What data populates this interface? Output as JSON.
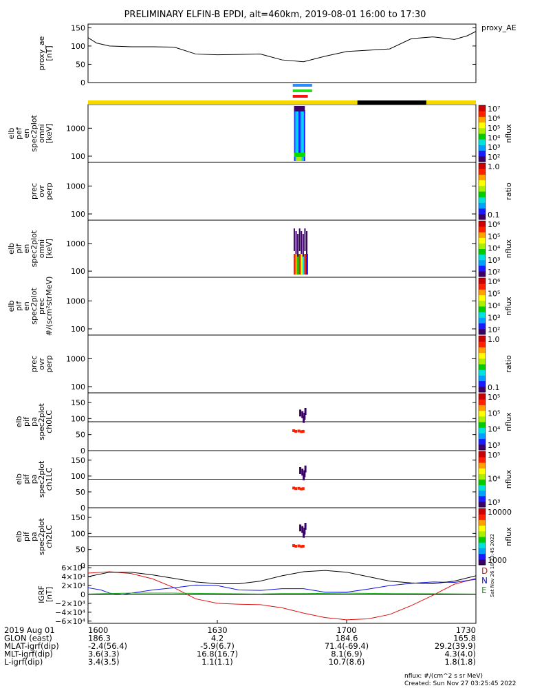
{
  "title": "PRELIMINARY ELFIN-B EPDI, alt=460km, 2019-08-01 16:00 to 17:30",
  "colors": {
    "status_yellow": "#f5d800",
    "status_black": "#000000",
    "bar_blue": "#2a8cff",
    "bar_green": "#22dd22",
    "bar_red": "#ff1010",
    "igrf_d": "#dd1010",
    "igrf_n": "#1010dd",
    "igrf_e": "#10aa10"
  },
  "chart_data": [
    {
      "type": "line",
      "panel": "proxy_ae",
      "ylabel_lines": [
        "proxy_ae",
        "[nT]"
      ],
      "legend": "proxy_AE",
      "ylim": [
        0,
        160
      ],
      "yticks": [
        "0",
        "50",
        "100",
        "150"
      ],
      "x": [
        0,
        2,
        5,
        10,
        15,
        20,
        25,
        30,
        35,
        40,
        45,
        50,
        55,
        60,
        63,
        70,
        75,
        80,
        85,
        88,
        90
      ],
      "values": [
        123,
        108,
        100,
        98,
        98,
        97,
        78,
        76,
        77,
        78,
        62,
        57,
        72,
        85,
        87,
        92,
        120,
        125,
        118,
        128,
        140
      ]
    },
    {
      "type": "heatmap",
      "panel": "elb_pef_en_spec2plot_omni",
      "ylabel_lines": [
        "elb",
        "pef",
        "en",
        "spec2plot",
        "omni",
        "[keV]"
      ],
      "yscale": "log",
      "yticks": [
        "100",
        "1000"
      ],
      "colorbar": {
        "label": "nflux",
        "ticks": [
          "10²",
          "10³",
          "10⁴",
          "10⁵",
          "10⁶",
          "10⁷"
        ]
      }
    },
    {
      "type": "heatmap",
      "panel": "prec_ovr_perp_1",
      "ylabel_lines": [
        "prec",
        "ovr",
        "perp"
      ],
      "yscale": "log",
      "yticks": [
        "100",
        "1000"
      ],
      "colorbar": {
        "label": "ratio",
        "ticks": [
          "0.1",
          "1.0"
        ]
      }
    },
    {
      "type": "heatmap",
      "panel": "elb_pif_en_spec2plot_omni",
      "ylabel_lines": [
        "elb",
        "pif",
        "en",
        "spec2plot",
        "omni",
        "[keV]"
      ],
      "yscale": "log",
      "yticks": [
        "100",
        "1000"
      ],
      "colorbar": {
        "label": "nflux",
        "ticks": [
          "10²",
          "10³",
          "10⁴",
          "10⁵",
          "10⁶"
        ]
      }
    },
    {
      "type": "heatmap",
      "panel": "elb_pif_en_spec2plot_prec",
      "ylabel_lines": [
        "elb",
        "pif",
        "en",
        "spec2plot",
        "prec",
        "#/(scm²strMeV)"
      ],
      "yscale": "log",
      "yticks": [
        "100",
        "1000"
      ],
      "colorbar": {
        "label": "nflux",
        "ticks": [
          "10²",
          "10³",
          "10⁴",
          "10⁵",
          "10⁶"
        ]
      }
    },
    {
      "type": "heatmap",
      "panel": "prec_ovr_perp_2",
      "ylabel_lines": [
        "prec",
        "ovr",
        "perp"
      ],
      "yscale": "log",
      "yticks": [
        "100",
        "1000"
      ],
      "colorbar": {
        "label": "ratio",
        "ticks": [
          "0.1",
          "1.0"
        ]
      }
    },
    {
      "type": "heatmap",
      "panel": "elb_pif_pa_spec2plot_ch0LC",
      "ylabel_lines": [
        "elb",
        "pif",
        "pa",
        "spec2plot",
        "ch0LC"
      ],
      "ylim": [
        0,
        180
      ],
      "yticks": [
        "0",
        "50",
        "100",
        "150"
      ],
      "colorbar": {
        "label": "nflux",
        "ticks": [
          "10³",
          "10⁴",
          "10⁵",
          "10⁵"
        ]
      }
    },
    {
      "type": "heatmap",
      "panel": "elb_pif_pa_spec2plot_ch1LC",
      "ylabel_lines": [
        "elb",
        "pif",
        "pa",
        "spec2plot",
        "ch1LC"
      ],
      "ylim": [
        0,
        180
      ],
      "yticks": [
        "0",
        "50",
        "100",
        "150"
      ],
      "colorbar": {
        "label": "nflux",
        "ticks": [
          "10³",
          "10⁴",
          "10⁵"
        ]
      }
    },
    {
      "type": "heatmap",
      "panel": "elb_pif_pa_spec2plot_ch2LC",
      "ylabel_lines": [
        "elb",
        "pif",
        "pa",
        "spec2plot",
        "ch2LC"
      ],
      "ylim": [
        0,
        180
      ],
      "yticks": [
        "0",
        "50",
        "100",
        "150"
      ],
      "colorbar": {
        "label": "nflux",
        "ticks": [
          "1000",
          "10000"
        ]
      }
    },
    {
      "type": "line",
      "panel": "IGRF",
      "ylabel_lines": [
        "IGRF",
        "[nT]"
      ],
      "ylim": [
        -65000,
        65000
      ],
      "yticks": [
        "−6×10⁴",
        "−4×10⁴",
        "−2×10⁴",
        "0",
        "2×10⁴",
        "4×10⁴",
        "6×10⁴"
      ],
      "legend": [
        "D",
        "N",
        "E"
      ],
      "series": [
        {
          "name": "D",
          "x": [
            0,
            5,
            10,
            15,
            20,
            25,
            30,
            35,
            40,
            45,
            50,
            55,
            60,
            65,
            70,
            75,
            80,
            85,
            90
          ],
          "values": [
            48000,
            51000,
            47000,
            35000,
            15000,
            -10000,
            -20000,
            -22000,
            -23000,
            -30000,
            -42000,
            -52000,
            -57000,
            -55000,
            -45000,
            -25000,
            -2000,
            23000,
            36000
          ]
        },
        {
          "name": "N",
          "x": [
            0,
            3,
            5,
            8,
            10,
            15,
            20,
            25,
            30,
            35,
            40,
            45,
            50,
            55,
            60,
            65,
            70,
            75,
            80,
            85,
            90
          ],
          "values": [
            15000,
            10000,
            3000,
            0,
            3000,
            10000,
            15000,
            21000,
            20000,
            10000,
            9000,
            13000,
            13000,
            5000,
            5000,
            12000,
            20000,
            25000,
            28000,
            27000,
            34000
          ]
        },
        {
          "name": "E",
          "x": [
            0,
            10,
            20,
            30,
            40,
            45,
            50,
            60,
            70,
            80,
            90
          ],
          "values": [
            1000,
            3000,
            3000,
            2000,
            1000,
            2000,
            2000,
            3000,
            2000,
            1500,
            1000
          ]
        },
        {
          "name": "total",
          "x": [
            0,
            5,
            10,
            15,
            20,
            25,
            30,
            35,
            40,
            45,
            50,
            55,
            60,
            65,
            70,
            75,
            80,
            85,
            90
          ],
          "values": [
            40000,
            50000,
            50000,
            44000,
            36000,
            28000,
            24000,
            24000,
            30000,
            42000,
            51000,
            54000,
            50000,
            40000,
            30000,
            26000,
            24000,
            30000,
            42000
          ]
        }
      ]
    }
  ],
  "status_bar": {
    "segments": [
      {
        "color": "yellow",
        "from_min": 0,
        "to_min": 62.5
      },
      {
        "color": "black",
        "from_min": 62.5,
        "to_min": 78.5
      },
      {
        "color": "yellow",
        "from_min": 78.5,
        "to_min": 90
      }
    ],
    "markers": [
      {
        "color": "blue",
        "from_min": 47.5,
        "to_min": 52
      },
      {
        "color": "green",
        "from_min": 47.5,
        "to_min": 52
      },
      {
        "color": "red",
        "from_min": 47.5,
        "to_min": 51
      }
    ]
  },
  "footer": {
    "rows": [
      {
        "label": "2019 Aug 01",
        "values": [
          "1600",
          "1630",
          "1700",
          "1730"
        ]
      },
      {
        "label": "GLON (east)",
        "values": [
          "186.3",
          "4.2",
          "184.6",
          "165.8"
        ]
      },
      {
        "label": "MLAT-igrf(dip)",
        "values": [
          "-2.4(56.4)",
          "-5.9(6.7)",
          "71.4(-69.4)",
          "29.2(39.9)"
        ]
      },
      {
        "label": "MLT-igrf(dip)",
        "values": [
          "3.6(3.3)",
          "16.8(16.7)",
          "8.1(6.9)",
          "4.3(4.0)"
        ]
      },
      {
        "label": "L-igrf(dip)",
        "values": [
          "3.4(3.5)",
          "1.1(1.1)",
          "10.7(8.6)",
          "1.8(1.8)"
        ]
      }
    ],
    "units_note": "nflux: #/(cm^2 s sr MeV)",
    "created": "Created: Sun Nov 27 03:25:45 2022",
    "side_stamp": "Sat Nov 26 18:23:45 2022"
  }
}
